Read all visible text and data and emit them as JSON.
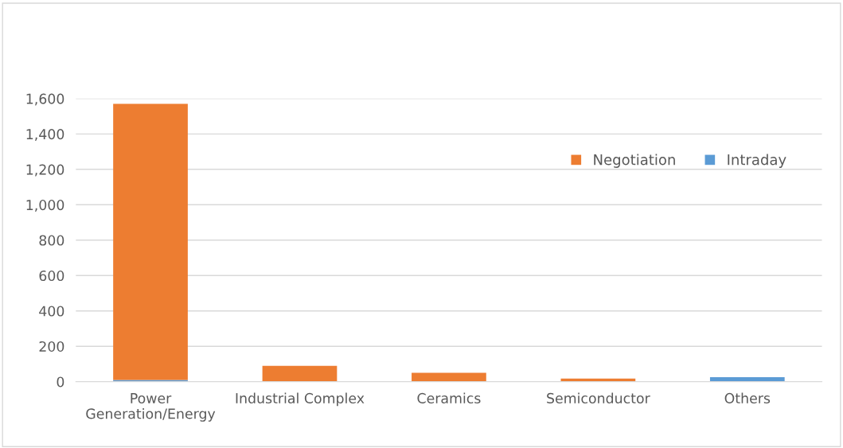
{
  "chart_data": {
    "type": "bar",
    "stacked": true,
    "categories": [
      "Power Generation/Energy",
      "Industrial Complex",
      "Ceramics",
      "Semiconductor",
      "Others"
    ],
    "series": [
      {
        "name": "Intraday",
        "color": "#5b9bd5",
        "values": [
          10,
          0,
          0,
          0,
          25
        ]
      },
      {
        "name": "Negotiation",
        "color": "#ed7d31",
        "values": [
          1560,
          90,
          50,
          18,
          0
        ]
      }
    ],
    "ylim": [
      0,
      1600
    ],
    "yticks": [
      {
        "value": 0,
        "label": "0"
      },
      {
        "value": 200,
        "label": "200"
      },
      {
        "value": 400,
        "label": "400"
      },
      {
        "value": 600,
        "label": "600"
      },
      {
        "value": 800,
        "label": "800"
      },
      {
        "value": 1000,
        "label": "1,000"
      },
      {
        "value": 1200,
        "label": "1,200"
      },
      {
        "value": 1400,
        "label": "1,400"
      },
      {
        "value": 1600,
        "label": "1,600"
      }
    ],
    "grid": "y",
    "legend": "top right"
  }
}
